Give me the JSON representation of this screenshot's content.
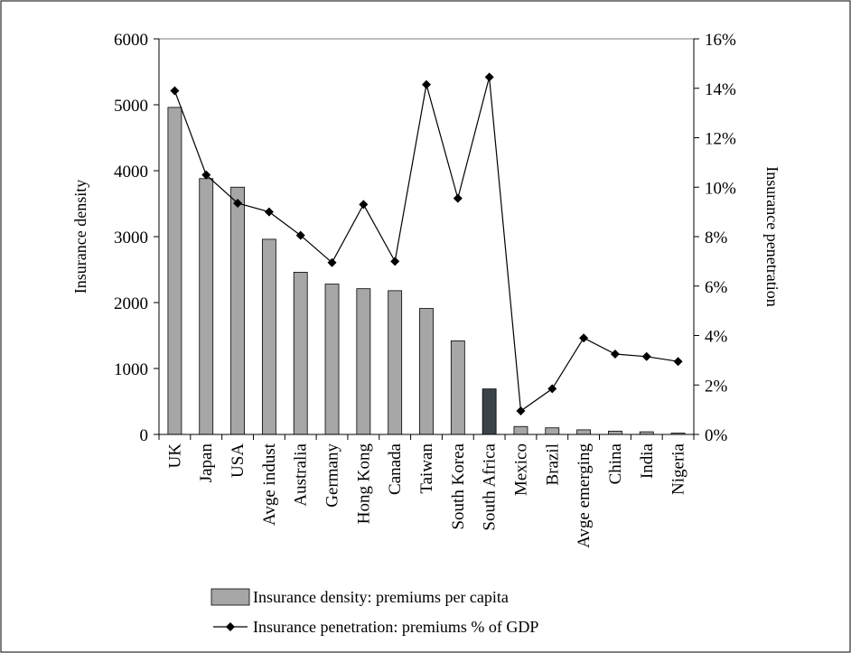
{
  "chart_data": {
    "type": "bar+line",
    "title": "",
    "categories": [
      "UK",
      "Japan",
      "USA",
      "Avge indust",
      "Australia",
      "Germany",
      "Hong Kong",
      "Canada",
      "Taiwan",
      "South Korea",
      "South Africa",
      "Mexico",
      "Brazil",
      "Avge emerging",
      "China",
      "India",
      "Nigeria"
    ],
    "ylabel_left": "Insurance density",
    "ylabel_right": "Insurance penetration",
    "ylim_left": [
      0,
      6000
    ],
    "ylim_right": [
      0,
      16
    ],
    "yticks_left": [
      "0",
      "1000",
      "2000",
      "3000",
      "4000",
      "5000",
      "6000"
    ],
    "yticks_right": [
      "0%",
      "2%",
      "4%",
      "6%",
      "8%",
      "10%",
      "12%",
      "14%",
      "16%"
    ],
    "grid": false,
    "legend_position": "bottom",
    "highlight_category": "South Africa",
    "colors": {
      "bar": "#a6a6a6",
      "bar_highlight": "#3a4448",
      "line": "#000000",
      "axis": "#000000"
    },
    "series": [
      {
        "name": "Insurance density: premiums per capita",
        "kind": "bar",
        "axis": "left",
        "values": [
          4960,
          3880,
          3750,
          2960,
          2460,
          2280,
          2210,
          2180,
          1910,
          1420,
          690,
          120,
          100,
          70,
          50,
          40,
          20
        ]
      },
      {
        "name": "Insurance penetration: premiums % of GDP",
        "kind": "line",
        "axis": "right",
        "marker": "diamond",
        "values": [
          13.9,
          10.5,
          9.35,
          9.0,
          8.05,
          6.95,
          9.3,
          7.0,
          14.15,
          9.55,
          14.45,
          0.95,
          1.85,
          3.9,
          3.25,
          3.15,
          2.95
        ]
      }
    ]
  }
}
